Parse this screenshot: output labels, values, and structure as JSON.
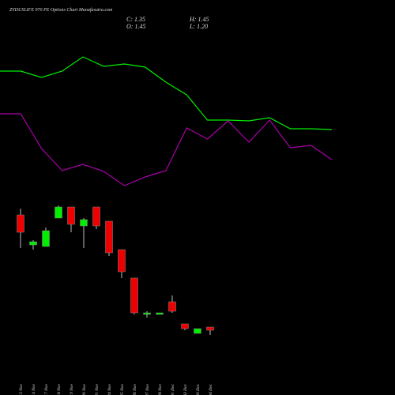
{
  "chart_data": [
    {
      "type": "line",
      "ylim": [
        0,
        100
      ],
      "series": [
        {
          "color": "#00ee00",
          "values": [
            85,
            85,
            81,
            85,
            94,
            88,
            89.5,
            87.5,
            78,
            70,
            54,
            54,
            53.5,
            55.5,
            48.5,
            48.5,
            48
          ]
        },
        {
          "color": "#aa00aa",
          "values": [
            58,
            58,
            36,
            22,
            26,
            21.5,
            12.5,
            18,
            22,
            49,
            42,
            53.5,
            40,
            54,
            36.5,
            38,
            29
          ]
        }
      ]
    },
    {
      "type": "candlestick",
      "title": "ZYDUSLIFE 970 PE Options  Chart Munafasutra.com",
      "ohlc_labels": [
        "C: 1.35",
        "O: 1.45",
        "H: 1.45",
        "L: 1.20"
      ],
      "categories": [
        "12 Nov",
        "14 Nov",
        "17 Nov",
        "18 Nov",
        "19 Nov",
        "20 Nov",
        "21 Nov",
        "24 Nov",
        "25 Nov",
        "26 Nov",
        "27 Nov",
        "28 Nov",
        "01 Dec",
        "02 Dec",
        "03 Dec",
        "04 Dec"
      ],
      "open": [
        5.0,
        4.05,
        4.0,
        4.9,
        5.25,
        4.65,
        5.25,
        4.8,
        3.9,
        3.0,
        1.85,
        1.85,
        2.25,
        1.55,
        1.25,
        1.45
      ],
      "high": [
        5.2,
        4.2,
        4.6,
        5.3,
        5.25,
        4.9,
        5.25,
        4.8,
        3.9,
        3.0,
        1.95,
        1.9,
        2.45,
        1.55,
        1.4,
        1.45
      ],
      "low": [
        3.95,
        3.9,
        4.0,
        4.9,
        4.45,
        3.95,
        4.55,
        3.7,
        3.0,
        1.85,
        1.75,
        1.85,
        1.9,
        1.35,
        1.25,
        1.2
      ],
      "close": [
        4.45,
        4.15,
        4.5,
        5.25,
        4.7,
        4.85,
        4.65,
        3.8,
        3.2,
        1.9,
        1.9,
        1.9,
        1.95,
        1.4,
        1.4,
        1.35
      ],
      "up_color": "#00ee00",
      "down_color": "#ee0000",
      "ylim": [
        0,
        5.45
      ]
    }
  ]
}
